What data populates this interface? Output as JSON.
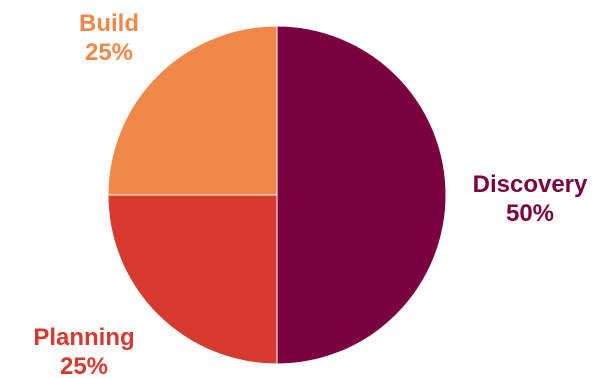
{
  "chart_data": {
    "type": "pie",
    "title": "",
    "slices": [
      {
        "label": "Discovery",
        "value": 50,
        "value_label": "50%",
        "color": "#7b0040"
      },
      {
        "label": "Planning",
        "value": 25,
        "value_label": "25%",
        "color": "#d63a2f"
      },
      {
        "label": "Build",
        "value": 25,
        "value_label": "25%",
        "color": "#f0884a"
      }
    ],
    "start_angle_deg": 0,
    "direction": "clockwise",
    "legend": "none"
  }
}
